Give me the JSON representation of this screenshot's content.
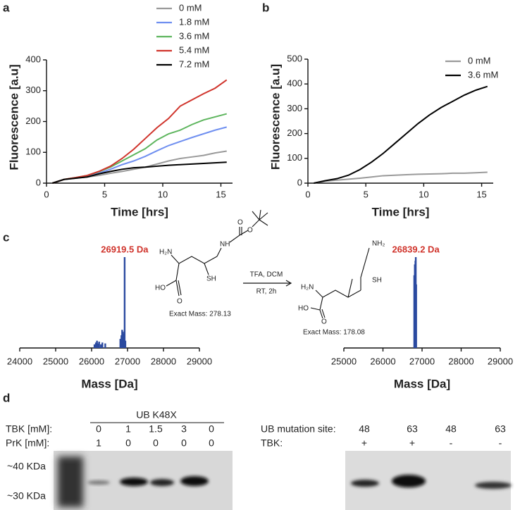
{
  "panel_labels": [
    "a",
    "b",
    "c",
    "d"
  ],
  "chart_data": [
    {
      "type": "line",
      "xlabel": "Time [hrs]",
      "ylabel": "Fluorescence [a.u]",
      "x": [
        0.5,
        1.5,
        2.5,
        3.5,
        4.5,
        5.5,
        6.5,
        7.5,
        8.5,
        9.5,
        10.5,
        11.5,
        12.5,
        13.5,
        14.5,
        15.5
      ],
      "series": [
        {
          "name": "0 mM",
          "color": "#9a9a9a",
          "values": [
            0,
            12,
            16,
            20,
            25,
            32,
            38,
            45,
            52,
            62,
            72,
            80,
            85,
            90,
            98,
            104
          ]
        },
        {
          "name": "1.8 mM",
          "color": "#6f8ff0",
          "values": [
            0,
            12,
            17,
            22,
            32,
            45,
            60,
            72,
            87,
            105,
            122,
            135,
            148,
            160,
            172,
            182
          ]
        },
        {
          "name": "3.6 mM",
          "color": "#5db55d",
          "values": [
            0,
            12,
            18,
            25,
            37,
            52,
            72,
            92,
            112,
            140,
            160,
            172,
            190,
            205,
            215,
            225
          ]
        },
        {
          "name": "5.4 mM",
          "color": "#d0342c",
          "values": [
            0,
            12,
            18,
            25,
            38,
            55,
            80,
            110,
            145,
            180,
            210,
            250,
            270,
            290,
            308,
            335
          ]
        },
        {
          "name": "7.2 mM",
          "color": "#000000",
          "values": [
            0,
            12,
            16,
            20,
            30,
            38,
            45,
            50,
            52,
            55,
            58,
            60,
            62,
            64,
            66,
            68
          ]
        }
      ],
      "xlim": [
        0,
        16
      ],
      "ylim": [
        0,
        400
      ],
      "xticks": [
        0,
        5,
        10,
        15
      ],
      "yticks": [
        0,
        100,
        200,
        300,
        400
      ],
      "legend": "top-right"
    },
    {
      "type": "line",
      "xlabel": "Time [hrs]",
      "ylabel": "Fluorescence [a.u]",
      "x": [
        0.5,
        1.5,
        2.5,
        3.5,
        4.5,
        5.5,
        6.5,
        7.5,
        8.5,
        9.5,
        10.5,
        11.5,
        12.5,
        13.5,
        14.5,
        15.5
      ],
      "series": [
        {
          "name": "0 mM",
          "color": "#9a9a9a",
          "values": [
            0,
            8,
            12,
            16,
            20,
            25,
            30,
            32,
            34,
            36,
            37,
            38,
            40,
            40,
            42,
            44
          ]
        },
        {
          "name": "3.6 mM",
          "color": "#000000",
          "values": [
            0,
            10,
            18,
            32,
            55,
            85,
            120,
            160,
            200,
            240,
            275,
            305,
            330,
            355,
            375,
            390
          ]
        }
      ],
      "xlim": [
        0,
        16
      ],
      "ylim": [
        0,
        500
      ],
      "xticks": [
        0,
        5,
        10,
        15
      ],
      "yticks": [
        0,
        100,
        200,
        300,
        400,
        500
      ],
      "legend": "top-right"
    },
    {
      "type": "spectrum",
      "xlabel": "Mass [Da]",
      "color": "#2b4aa0",
      "annotation": "26919.5 Da",
      "annotation_color": "#d0342c",
      "x": [
        26080,
        26120,
        26150,
        26180,
        26210,
        26260,
        26300,
        26380,
        26800,
        26830,
        26850,
        26870,
        26890,
        26919.5,
        26940
      ],
      "values": [
        4,
        6,
        8,
        5,
        7,
        4,
        6,
        5,
        10,
        14,
        20,
        18,
        16,
        100,
        8
      ],
      "xlim": [
        24000,
        29000
      ],
      "xticks": [
        24000,
        25000,
        26000,
        27000,
        28000,
        29000
      ]
    },
    {
      "type": "spectrum",
      "xlabel": "Mass [Da]",
      "color": "#2b4aa0",
      "annotation": "26839.2 Da",
      "annotation_color": "#d0342c",
      "x": [
        26800,
        26815,
        26830,
        26839.2,
        26850
      ],
      "values": [
        80,
        92,
        96,
        100,
        70
      ],
      "xlim": [
        25000,
        29000
      ],
      "xticks": [
        25000,
        26000,
        27000,
        28000,
        29000
      ]
    }
  ],
  "chemistry": {
    "left": {
      "amine": "H₂N",
      "hydroxyl": "HO",
      "carbonyl": "O",
      "thiol": "SH",
      "amide": "NH",
      "boc_carbonyl": "O",
      "boc_ester": "O",
      "exact_mass": "Exact Mass: 278.13"
    },
    "reagents": [
      "TFA, DCM",
      "RT, 2h"
    ],
    "right": {
      "amine": "H₂N",
      "hydroxyl": "HO",
      "carbonyl": "O",
      "thiol": "SH",
      "terminal_amine": "NH₂",
      "exact_mass": "Exact Mass: 178.08"
    }
  },
  "blot": {
    "left": {
      "header": "UB K48X",
      "rows": [
        {
          "label": "TBK [mM]:",
          "values": [
            0,
            1,
            1.5,
            3,
            0
          ]
        },
        {
          "label": "PrK [mM]:",
          "values": [
            1,
            0,
            0,
            0,
            0
          ]
        }
      ],
      "markers": [
        "~40 KDa",
        "~30 KDa"
      ]
    },
    "right": {
      "rows": [
        {
          "label": "UB mutation site:",
          "values": [
            48,
            63,
            48,
            63
          ]
        },
        {
          "label": "TBK:",
          "values": [
            "+",
            "+",
            "-",
            "-"
          ]
        }
      ]
    }
  }
}
